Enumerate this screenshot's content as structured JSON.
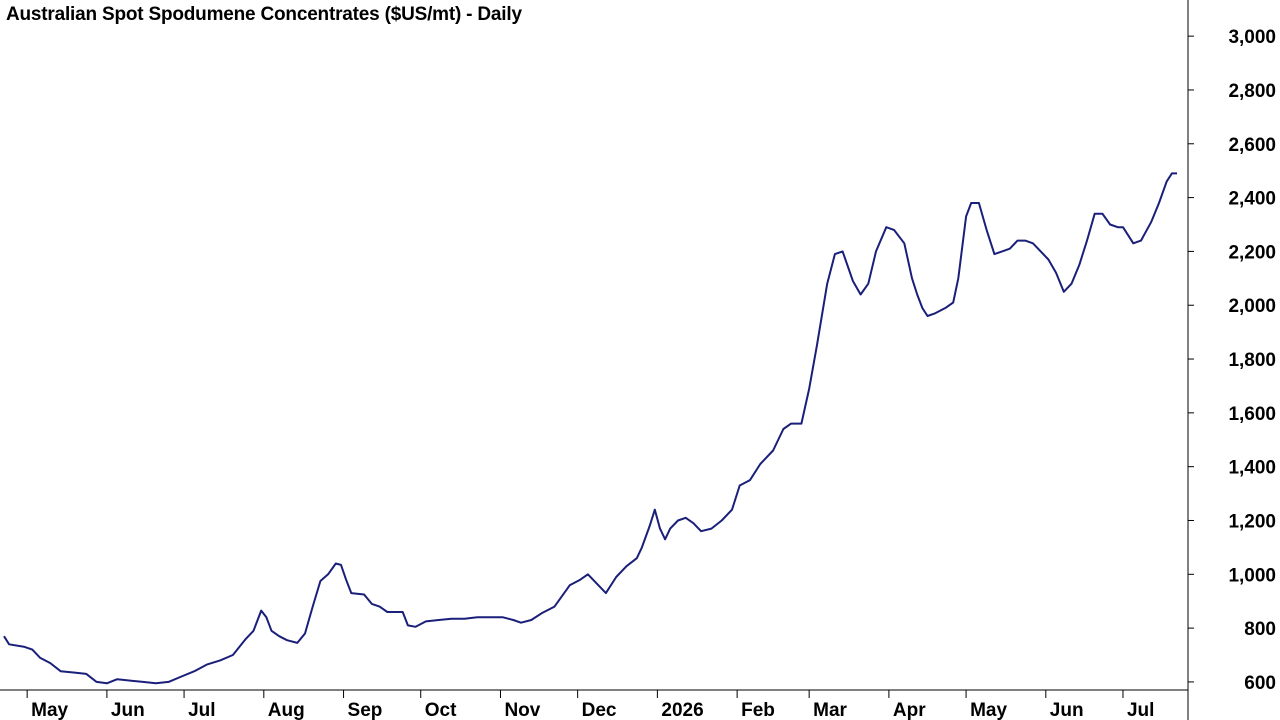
{
  "chart_data": {
    "type": "line",
    "title": "Australian Spot Spodumene Concentrates ($US/mt) - Daily",
    "ylim": [
      570,
      3060
    ],
    "y_ticks": [
      600,
      800,
      1000,
      1200,
      1400,
      1600,
      1800,
      2000,
      2200,
      2400,
      2600,
      2800,
      3000
    ],
    "y_tick_labels": [
      "600",
      "800",
      "1,000",
      "1,200",
      "1,400",
      "1,600",
      "1,800",
      "2,000",
      "2,200",
      "2,400",
      "2,600",
      "2,800",
      "3,000"
    ],
    "x_start": "2025-04-22",
    "x_end": "2026-07-22",
    "x_month_labels": [
      {
        "date": "2025-05-01",
        "label": "May"
      },
      {
        "date": "2025-06-01",
        "label": "Jun"
      },
      {
        "date": "2025-07-01",
        "label": "Jul"
      },
      {
        "date": "2025-08-01",
        "label": "Aug"
      },
      {
        "date": "2025-09-01",
        "label": "Sep"
      },
      {
        "date": "2025-10-01",
        "label": "Oct"
      },
      {
        "date": "2025-11-01",
        "label": "Nov"
      },
      {
        "date": "2025-12-01",
        "label": "Dec"
      },
      {
        "date": "2026-01-01",
        "label": "2026"
      },
      {
        "date": "2026-02-01",
        "label": "Feb"
      },
      {
        "date": "2026-03-01",
        "label": "Mar"
      },
      {
        "date": "2026-04-01",
        "label": "Apr"
      },
      {
        "date": "2026-05-01",
        "label": "May"
      },
      {
        "date": "2026-06-01",
        "label": "Jun"
      },
      {
        "date": "2026-07-01",
        "label": "Jul"
      }
    ],
    "grid": false,
    "line_color": "#1a1f7a",
    "series": [
      {
        "points": [
          [
            "2025-04-22",
            770
          ],
          [
            "2025-04-24",
            740
          ],
          [
            "2025-04-30",
            730
          ],
          [
            "2025-05-03",
            720
          ],
          [
            "2025-05-06",
            690
          ],
          [
            "2025-05-10",
            670
          ],
          [
            "2025-05-14",
            640
          ],
          [
            "2025-05-19",
            635
          ],
          [
            "2025-05-24",
            630
          ],
          [
            "2025-05-28",
            600
          ],
          [
            "2025-06-01",
            595
          ],
          [
            "2025-06-05",
            610
          ],
          [
            "2025-06-10",
            605
          ],
          [
            "2025-06-15",
            600
          ],
          [
            "2025-06-20",
            595
          ],
          [
            "2025-06-25",
            600
          ],
          [
            "2025-06-30",
            620
          ],
          [
            "2025-07-05",
            640
          ],
          [
            "2025-07-10",
            665
          ],
          [
            "2025-07-15",
            680
          ],
          [
            "2025-07-20",
            700
          ],
          [
            "2025-07-25",
            760
          ],
          [
            "2025-07-28",
            790
          ],
          [
            "2025-07-31",
            865
          ],
          [
            "2025-08-02",
            840
          ],
          [
            "2025-08-04",
            790
          ],
          [
            "2025-08-07",
            770
          ],
          [
            "2025-08-10",
            755
          ],
          [
            "2025-08-14",
            745
          ],
          [
            "2025-08-17",
            780
          ],
          [
            "2025-08-20",
            880
          ],
          [
            "2025-08-23",
            975
          ],
          [
            "2025-08-26",
            1000
          ],
          [
            "2025-08-29",
            1040
          ],
          [
            "2025-08-31",
            1035
          ],
          [
            "2025-09-02",
            980
          ],
          [
            "2025-09-04",
            930
          ],
          [
            "2025-09-09",
            925
          ],
          [
            "2025-09-12",
            890
          ],
          [
            "2025-09-15",
            880
          ],
          [
            "2025-09-18",
            860
          ],
          [
            "2025-09-24",
            860
          ],
          [
            "2025-09-26",
            810
          ],
          [
            "2025-09-29",
            805
          ],
          [
            "2025-10-03",
            825
          ],
          [
            "2025-10-08",
            830
          ],
          [
            "2025-10-13",
            835
          ],
          [
            "2025-10-18",
            835
          ],
          [
            "2025-10-23",
            840
          ],
          [
            "2025-10-28",
            840
          ],
          [
            "2025-11-02",
            840
          ],
          [
            "2025-11-06",
            830
          ],
          [
            "2025-11-09",
            820
          ],
          [
            "2025-11-13",
            830
          ],
          [
            "2025-11-17",
            855
          ],
          [
            "2025-11-22",
            880
          ],
          [
            "2025-11-25",
            920
          ],
          [
            "2025-11-28",
            960
          ],
          [
            "2025-12-02",
            980
          ],
          [
            "2025-12-05",
            1000
          ],
          [
            "2025-12-09",
            960
          ],
          [
            "2025-12-12",
            930
          ],
          [
            "2025-12-16",
            990
          ],
          [
            "2025-12-20",
            1030
          ],
          [
            "2025-12-24",
            1060
          ],
          [
            "2025-12-26",
            1100
          ],
          [
            "2025-12-29",
            1180
          ],
          [
            "2025-12-31",
            1240
          ],
          [
            "2026-01-02",
            1170
          ],
          [
            "2026-01-04",
            1130
          ],
          [
            "2026-01-06",
            1170
          ],
          [
            "2026-01-09",
            1200
          ],
          [
            "2026-01-12",
            1210
          ],
          [
            "2026-01-15",
            1190
          ],
          [
            "2026-01-18",
            1160
          ],
          [
            "2026-01-22",
            1170
          ],
          [
            "2026-01-26",
            1200
          ],
          [
            "2026-01-30",
            1240
          ],
          [
            "2026-02-02",
            1330
          ],
          [
            "2026-02-06",
            1350
          ],
          [
            "2026-02-10",
            1410
          ],
          [
            "2026-02-15",
            1460
          ],
          [
            "2026-02-19",
            1540
          ],
          [
            "2026-02-22",
            1560
          ],
          [
            "2026-02-26",
            1560
          ],
          [
            "2026-03-01",
            1690
          ],
          [
            "2026-03-04",
            1850
          ],
          [
            "2026-03-08",
            2080
          ],
          [
            "2026-03-11",
            2190
          ],
          [
            "2026-03-14",
            2200
          ],
          [
            "2026-03-18",
            2090
          ],
          [
            "2026-03-21",
            2040
          ],
          [
            "2026-03-24",
            2080
          ],
          [
            "2026-03-27",
            2200
          ],
          [
            "2026-03-31",
            2290
          ],
          [
            "2026-04-03",
            2280
          ],
          [
            "2026-04-07",
            2230
          ],
          [
            "2026-04-10",
            2100
          ],
          [
            "2026-04-12",
            2040
          ],
          [
            "2026-04-14",
            1990
          ],
          [
            "2026-04-16",
            1960
          ],
          [
            "2026-04-19",
            1970
          ],
          [
            "2026-04-23",
            1990
          ],
          [
            "2026-04-26",
            2010
          ],
          [
            "2026-04-28",
            2100
          ],
          [
            "2026-05-01",
            2330
          ],
          [
            "2026-05-03",
            2380
          ],
          [
            "2026-05-06",
            2380
          ],
          [
            "2026-05-09",
            2280
          ],
          [
            "2026-05-12",
            2190
          ],
          [
            "2026-05-15",
            2200
          ],
          [
            "2026-05-18",
            2210
          ],
          [
            "2026-05-21",
            2240
          ],
          [
            "2026-05-24",
            2240
          ],
          [
            "2026-05-27",
            2230
          ],
          [
            "2026-05-29",
            2210
          ],
          [
            "2026-06-02",
            2170
          ],
          [
            "2026-06-05",
            2120
          ],
          [
            "2026-06-08",
            2050
          ],
          [
            "2026-06-11",
            2080
          ],
          [
            "2026-06-14",
            2150
          ],
          [
            "2026-06-17",
            2240
          ],
          [
            "2026-06-20",
            2340
          ],
          [
            "2026-06-23",
            2340
          ],
          [
            "2026-06-26",
            2300
          ],
          [
            "2026-06-29",
            2290
          ],
          [
            "2026-07-01",
            2290
          ],
          [
            "2026-07-05",
            2230
          ],
          [
            "2026-07-08",
            2240
          ],
          [
            "2026-07-12",
            2310
          ],
          [
            "2026-07-15",
            2380
          ],
          [
            "2026-07-18",
            2460
          ],
          [
            "2026-07-20",
            2490
          ],
          [
            "2026-07-22",
            2490
          ]
        ]
      }
    ]
  }
}
